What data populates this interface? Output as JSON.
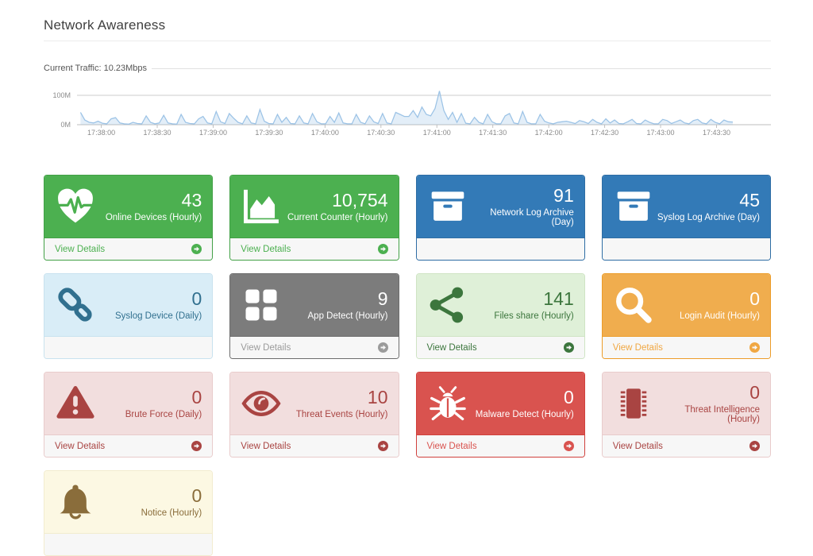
{
  "header": {
    "title": "Network Awareness"
  },
  "traffic": {
    "label": "Current Traffic: 10.23Mbps"
  },
  "chart_data": {
    "type": "area",
    "title": "Current Traffic: 10.23Mbps",
    "xlabel": "",
    "ylabel": "",
    "unit": "M",
    "ylim": [
      0,
      115
    ],
    "y_gridline_value": 100,
    "y_tick_labels": [
      "100M",
      "0M"
    ],
    "x_labels": [
      "17:38:00",
      "17:38:30",
      "17:39:00",
      "17:39:30",
      "17:40:00",
      "17:40:30",
      "17:41:00",
      "17:41:30",
      "17:42:00",
      "17:42:30",
      "17:43:00",
      "17:43:30"
    ],
    "values": [
      42,
      16,
      8,
      6,
      12,
      5,
      3,
      20,
      24,
      6,
      3,
      2,
      8,
      4,
      3,
      30,
      8,
      3,
      6,
      32,
      6,
      3,
      2,
      35,
      8,
      4,
      3,
      20,
      28,
      6,
      3,
      45,
      10,
      4,
      38,
      22,
      8,
      3,
      30,
      6,
      3,
      52,
      12,
      4,
      3,
      35,
      8,
      25,
      4,
      3,
      30,
      6,
      3,
      38,
      10,
      3,
      3,
      28,
      8,
      40,
      6,
      3,
      3,
      35,
      8,
      3,
      30,
      10,
      4,
      38,
      6,
      3,
      42,
      35,
      28,
      28,
      48,
      25,
      60,
      35,
      30,
      55,
      115,
      48,
      18,
      42,
      8,
      38,
      5,
      3,
      25,
      8,
      3,
      35,
      10,
      3,
      3,
      30,
      38,
      6,
      3,
      45,
      8,
      3,
      3,
      35,
      12,
      6,
      3,
      8,
      10,
      12,
      8,
      4,
      14,
      10,
      4,
      18,
      8,
      3,
      20,
      6,
      16,
      4,
      3,
      10,
      18,
      4,
      3,
      16,
      8,
      3,
      3,
      18,
      14,
      4,
      10,
      16,
      6,
      3,
      14,
      18,
      6,
      3,
      18,
      8,
      3,
      16,
      10,
      9
    ],
    "colors": {
      "line": "#9cc3e6",
      "fill": "rgba(156,195,230,0.28)",
      "grid": "#cccccc",
      "axis": "#bdbdbd",
      "tick_text": "#8a8a8a"
    },
    "legend": "none",
    "grid": "top-line-only"
  },
  "themes": {
    "green": {
      "bg": "#4cb050",
      "border": "#42a046",
      "fg": "#ffffff",
      "accent": "#4cb050"
    },
    "blue": {
      "bg": "#337ab7",
      "border": "#2e6da4",
      "fg": "#ffffff",
      "accent": "#337ab7"
    },
    "lightblue": {
      "bg": "#d9edf7",
      "border": "#c8e2ef",
      "fg": "#31708f",
      "accent": "#31708f"
    },
    "gray": {
      "bg": "#7c7c7c",
      "border": "#6d6d6d",
      "fg": "#ffffff",
      "accent": "#9b9b9b"
    },
    "lightgreen": {
      "bg": "#dff0d8",
      "border": "#cfe4c4",
      "fg": "#3c763d",
      "accent": "#3c763d"
    },
    "orange": {
      "bg": "#f0ad4e",
      "border": "#ec9c29",
      "fg": "#ffffff",
      "accent": "#f0a742"
    },
    "lightred": {
      "bg": "#f2dede",
      "border": "#e8cbcb",
      "fg": "#a94442",
      "accent": "#a94442"
    },
    "red": {
      "bg": "#d9534f",
      "border": "#d0403c",
      "fg": "#ffffff",
      "accent": "#d9534f"
    },
    "lightyellow": {
      "bg": "#fcf8e3",
      "border": "#f2eccf",
      "fg": "#8a6d3b",
      "accent": "#8a6d3b"
    }
  },
  "footer_arrow_icon": "arrow-circle-right-icon",
  "cards": [
    {
      "id": "online-devices",
      "icon": "heartbeat-icon",
      "value": "43",
      "label": "Online Devices (Hourly)",
      "footer_label": "View Details",
      "theme": "green"
    },
    {
      "id": "current-counter",
      "icon": "area-chart-icon",
      "value": "10,754",
      "label": "Current Counter (Hourly)",
      "footer_label": "View Details",
      "theme": "green"
    },
    {
      "id": "network-log-archive",
      "icon": "archive-icon",
      "value": "91",
      "label": "Network Log Archive (Day)",
      "footer_label": "",
      "theme": "blue"
    },
    {
      "id": "syslog-log-archive",
      "icon": "archive-icon",
      "value": "45",
      "label": "Syslog Log Archive (Day)",
      "footer_label": "",
      "theme": "blue"
    },
    {
      "id": "syslog-device",
      "icon": "link-icon",
      "value": "0",
      "label": "Syslog Device (Daily)",
      "footer_label": "",
      "theme": "lightblue"
    },
    {
      "id": "app-detect",
      "icon": "grid-icon",
      "value": "9",
      "label": "App Detect (Hourly)",
      "footer_label": "View Details",
      "theme": "gray"
    },
    {
      "id": "files-share",
      "icon": "share-icon",
      "value": "141",
      "label": "Files share (Hourly)",
      "footer_label": "View Details",
      "theme": "lightgreen"
    },
    {
      "id": "login-audit",
      "icon": "search-icon",
      "value": "0",
      "label": "Login Audit (Hourly)",
      "footer_label": "View Details",
      "theme": "orange"
    },
    {
      "id": "brute-force",
      "icon": "warning-icon",
      "value": "0",
      "label": "Brute Force (Daily)",
      "footer_label": "View Details",
      "theme": "lightred"
    },
    {
      "id": "threat-events",
      "icon": "eye-icon",
      "value": "10",
      "label": "Threat Events (Hourly)",
      "footer_label": "View Details",
      "theme": "lightred"
    },
    {
      "id": "malware-detect",
      "icon": "bug-icon",
      "value": "0",
      "label": "Malware Detect (Hourly)",
      "footer_label": "View Details",
      "theme": "red"
    },
    {
      "id": "threat-intelligence",
      "icon": "chip-icon",
      "value": "0",
      "label": "Threat Intelligence (Hourly)",
      "footer_label": "View Details",
      "theme": "lightred"
    },
    {
      "id": "notice",
      "icon": "bell-icon",
      "value": "0",
      "label": "Notice (Hourly)",
      "footer_label": "",
      "theme": "lightyellow"
    }
  ]
}
